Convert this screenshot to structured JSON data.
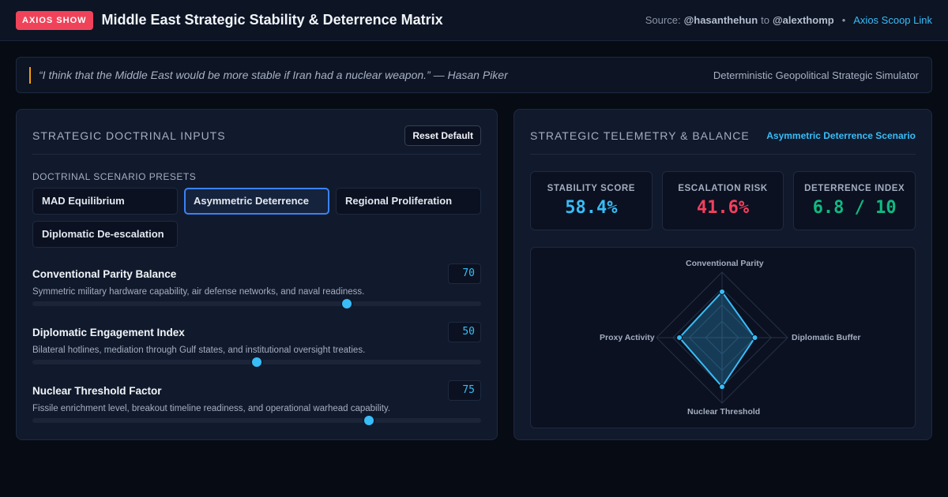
{
  "header": {
    "badge": "AXIOS SHOW",
    "title": "Middle East Strategic Stability & Deterrence Matrix",
    "source_prefix": "Source:",
    "source_from": "@hasanthehun",
    "source_to_word": "to",
    "source_to": "@alexthomp",
    "scoop_link": "Axios Scoop Link"
  },
  "quote": {
    "text": "“I think that the Middle East would be more stable if Iran had a nuclear weapon.” — Hasan Piker",
    "right_label": "Deterministic Geopolitical Strategic Simulator"
  },
  "left_panel": {
    "title": "STRATEGIC DOCTRINAL INPUTS",
    "reset_label": "Reset Default",
    "presets_label": "DOCTRINAL SCENARIO PRESETS",
    "presets": [
      {
        "label": "MAD Equilibrium",
        "active": false
      },
      {
        "label": "Asymmetric Deterrence",
        "active": true
      },
      {
        "label": "Regional Proliferation",
        "active": false
      },
      {
        "label": "Diplomatic De-escalation",
        "active": false
      }
    ],
    "params": [
      {
        "name": "Conventional Parity Balance",
        "value": 70,
        "desc": "Symmetric military hardware capability, air defense networks, and naval readiness."
      },
      {
        "name": "Diplomatic Engagement Index",
        "value": 50,
        "desc": "Bilateral hotlines, mediation through Gulf states, and institutional oversight treaties."
      },
      {
        "name": "Nuclear Threshold Factor",
        "value": 75,
        "desc": "Fissile enrichment level, breakout timeline readiness, and operational warhead capability."
      }
    ]
  },
  "right_panel": {
    "title": "STRATEGIC TELEMETRY & BALANCE",
    "scenario": "Asymmetric Deterrence Scenario",
    "metrics": [
      {
        "label": "STABILITY SCORE",
        "value": "58.4%",
        "color": "#38bdf8"
      },
      {
        "label": "ESCALATION RISK",
        "value": "41.6%",
        "color": "#f43f5e"
      },
      {
        "label": "DETERRENCE INDEX",
        "value": "6.8 / 10",
        "color": "#10b981"
      }
    ],
    "radar": {
      "axes": [
        "Conventional Parity",
        "Diplomatic Buffer",
        "Nuclear Threshold",
        "Proxy Activity"
      ],
      "values": [
        0.7,
        0.5,
        0.75,
        0.65
      ],
      "accent": "#38bdf8"
    }
  }
}
